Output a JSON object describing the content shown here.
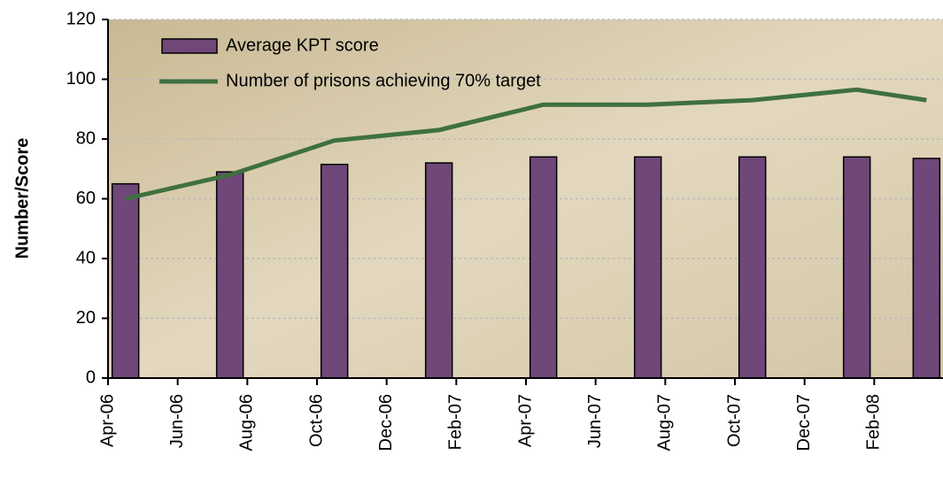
{
  "chart_data": {
    "type": "bar-line",
    "y_label": "Number/Score",
    "x": [
      "2006-04",
      "2006-07",
      "2006-10",
      "2007-01",
      "2007-04",
      "2007-07",
      "2007-10",
      "2008-01",
      "2008-03"
    ],
    "xlim": [
      "2006-04",
      "2008-04"
    ],
    "xticks": [
      {
        "value": "2006-04",
        "label": "Apr-06"
      },
      {
        "value": "2006-06",
        "label": "Jun-06"
      },
      {
        "value": "2006-08",
        "label": "Aug-06"
      },
      {
        "value": "2006-10",
        "label": "Oct-06"
      },
      {
        "value": "2006-12",
        "label": "Dec-06"
      },
      {
        "value": "2007-02",
        "label": "Feb-07"
      },
      {
        "value": "2007-04",
        "label": "Apr-07"
      },
      {
        "value": "2007-06",
        "label": "Jun-07"
      },
      {
        "value": "2007-08",
        "label": "Aug-07"
      },
      {
        "value": "2007-10",
        "label": "Oct-07"
      },
      {
        "value": "2007-12",
        "label": "Dec-07"
      },
      {
        "value": "2008-02",
        "label": "Feb-08"
      }
    ],
    "series": [
      {
        "name": "Average KPT score",
        "type": "bar",
        "color": "#6f4778",
        "values": [
          65,
          69,
          71.5,
          72,
          74,
          74,
          74,
          74,
          73.5
        ]
      },
      {
        "name": "Number of prisons achieving 70% target",
        "type": "line",
        "color": "#3f7040",
        "values": [
          60,
          68,
          79.5,
          83,
          91.5,
          91.5,
          93,
          96.5,
          93
        ]
      }
    ],
    "ylim": [
      0,
      120
    ],
    "yticks": [
      0,
      20,
      40,
      60,
      80,
      100,
      120
    ],
    "grid": true
  }
}
